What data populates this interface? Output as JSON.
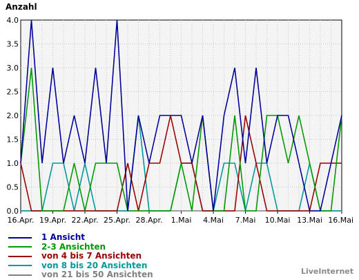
{
  "chart_data": {
    "type": "line",
    "title": "Anzahl",
    "ylim": [
      0,
      4
    ],
    "yticks": [
      "0.0",
      "0.5",
      "1.0",
      "1.5",
      "2.0",
      "2.5",
      "3.0",
      "3.5",
      "4.0"
    ],
    "categories": [
      "16.Apr.",
      "17.Apr.",
      "18.Apr.",
      "19.Apr.",
      "20.Apr.",
      "21.Apr.",
      "22.Apr.",
      "23.Apr.",
      "24.Apr.",
      "25.Apr.",
      "26.Apr.",
      "27.Apr.",
      "28.Apr.",
      "29.Apr.",
      "30.Apr.",
      "1.Mai",
      "2.Mai",
      "3.Mai",
      "4.Mai",
      "5.Mai",
      "6.Mai",
      "7.Mai",
      "8.Mai",
      "9.Mai",
      "10.Mai",
      "11.Mai",
      "12.Mai",
      "13.Mai",
      "14.Mai",
      "15.Mai",
      "16.Mai"
    ],
    "xtick_labels": [
      "16.Apr.",
      "19.Apr.",
      "22.Apr.",
      "25.Apr.",
      "28.Apr.",
      "1.Mai",
      "4.Mai",
      "7.Mai",
      "10.Mai",
      "13.Mai",
      "16.Mai"
    ],
    "grid": true,
    "legend_position": "bottom-left",
    "series": [
      {
        "name": "1 Ansicht",
        "color": "#000099",
        "values": [
          1,
          4,
          1,
          3,
          1,
          2,
          1,
          3,
          1,
          4,
          0,
          2,
          1,
          2,
          2,
          2,
          1,
          2,
          0,
          2,
          3,
          1,
          3,
          1,
          2,
          2,
          1,
          0,
          0,
          1,
          2
        ]
      },
      {
        "name": "2-3 Ansichten",
        "color": "#009900",
        "values": [
          1,
          3,
          0,
          0,
          0,
          1,
          0,
          1,
          1,
          1,
          0,
          0,
          0,
          0,
          0,
          1,
          0,
          2,
          0,
          0,
          2,
          0,
          0,
          2,
          2,
          1,
          2,
          1,
          0,
          0,
          2
        ]
      },
      {
        "name": "von 4 bis 7 Ansichten",
        "color": "#990000",
        "values": [
          1,
          0,
          0,
          0,
          0,
          0,
          0,
          0,
          0,
          0,
          1,
          0,
          1,
          1,
          2,
          1,
          1,
          0,
          0,
          0,
          0,
          2,
          1,
          0,
          0,
          0,
          0,
          0,
          1,
          1,
          1
        ]
      },
      {
        "name": "von 8 bis 20 Ansichten",
        "color": "#009999",
        "values": [
          0,
          0,
          0,
          1,
          1,
          0,
          1,
          0,
          0,
          0,
          0,
          2,
          0,
          0,
          0,
          1,
          1,
          0,
          0,
          1,
          1,
          0,
          1,
          1,
          0,
          0,
          0,
          1,
          0,
          0,
          0
        ]
      },
      {
        "name": "von 21 bis 50 Ansichten",
        "color": "#808080",
        "values": [
          0,
          0,
          0,
          0,
          0,
          0,
          0,
          0,
          0,
          0,
          0,
          0,
          0,
          0,
          0,
          0,
          0,
          0,
          0,
          0,
          0,
          0,
          0,
          0,
          0,
          0,
          0,
          0,
          0,
          0,
          0
        ]
      }
    ]
  },
  "brand": "LiveInternet"
}
